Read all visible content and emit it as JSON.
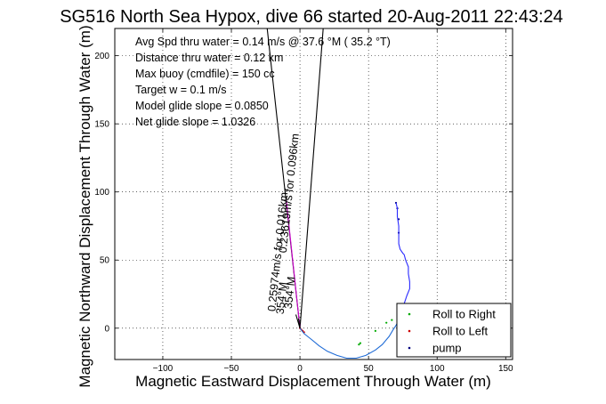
{
  "chart_data": {
    "type": "line",
    "title": "SG516 North Sea Hypox, dive 66 started 20-Aug-2011 22:43:24",
    "xlabel": "Magnetic Eastward Displacement Through Water (m)",
    "ylabel": "Magnetic Northward Displacement Through Water (m)",
    "xlim": [
      -135,
      155
    ],
    "ylim": [
      -23,
      220
    ],
    "xticks": [
      -100,
      -50,
      0,
      50,
      100,
      150
    ],
    "yticks": [
      0,
      50,
      100,
      150,
      200
    ],
    "xtick_labels": [
      "−100",
      "−50",
      "0",
      "50",
      "100",
      "150"
    ],
    "ytick_labels": [
      "0",
      "50",
      "100",
      "150",
      "200"
    ],
    "grid": true,
    "legend_position": "bottom-right",
    "annotations": [
      "Avg Spd thru water =  0.14 m/s @  37.6   °M ( 35.2 °T)",
      "Distance thru water =  0.12 km",
      "Max buoy (cmdfile) = 150 cc",
      "Target w = 0.1 m/s",
      "Model glide slope = 0.0850",
      "Net glide slope = 1.0326"
    ],
    "rotated_labels": [
      "0.23619m/s for 0.096km",
      "0.25974m/s for 0.016km",
      "354°M",
      "354°M"
    ],
    "series": [
      {
        "name": "Roll to Right",
        "color": "#00aa00",
        "marker": "dot",
        "points": [
          [
            43,
            -12
          ],
          [
            44,
            -11
          ],
          [
            55,
            -2
          ],
          [
            63,
            4
          ],
          [
            67,
            6
          ]
        ]
      },
      {
        "name": "Roll to Left",
        "color": "#cc0000",
        "marker": "dot",
        "points": [
          [
            0,
            0
          ],
          [
            1,
            -1
          ],
          [
            2,
            -2
          ],
          [
            3,
            -3
          ]
        ]
      },
      {
        "name": "pump",
        "color": "#000080",
        "marker": "dot",
        "points": [
          [
            70,
            92
          ],
          [
            71,
            88
          ],
          [
            72,
            80
          ],
          [
            72,
            70
          ]
        ]
      },
      {
        "name": "",
        "color": "#1f6bd6",
        "marker": "none",
        "points": [
          [
            0,
            0
          ],
          [
            3,
            -4
          ],
          [
            8,
            -8
          ],
          [
            14,
            -13
          ],
          [
            20,
            -17
          ],
          [
            27,
            -20
          ],
          [
            34,
            -22
          ],
          [
            41,
            -22
          ],
          [
            48,
            -20
          ],
          [
            55,
            -16
          ],
          [
            60,
            -12
          ],
          [
            65,
            -6
          ],
          [
            68,
            -1
          ],
          [
            70,
            2
          ],
          [
            71,
            4
          ]
        ]
      },
      {
        "name": "",
        "color": "#2a2aff",
        "marker": "none",
        "points": [
          [
            71,
            4
          ],
          [
            72,
            8
          ],
          [
            74,
            13
          ],
          [
            76,
            18
          ],
          [
            78,
            24
          ],
          [
            80,
            29
          ],
          [
            80,
            34
          ],
          [
            79,
            40
          ],
          [
            79,
            45
          ],
          [
            77,
            50
          ],
          [
            76,
            54
          ],
          [
            75,
            55
          ],
          [
            73,
            58
          ],
          [
            72,
            62
          ],
          [
            72,
            68
          ],
          [
            72,
            75
          ],
          [
            71,
            82
          ],
          [
            71,
            88
          ],
          [
            70,
            92
          ]
        ]
      },
      {
        "name": "",
        "color": "#000000",
        "marker": "none",
        "points": [
          [
            0,
            0
          ],
          [
            -24,
            221
          ]
        ]
      },
      {
        "name": "",
        "color": "#000000",
        "marker": "none",
        "points": [
          [
            0,
            0
          ],
          [
            17,
            221
          ]
        ]
      },
      {
        "name": "",
        "color": "#cc00cc",
        "marker": "none",
        "points": [
          [
            0,
            0
          ],
          [
            -10,
            94
          ]
        ]
      },
      {
        "name": "",
        "color": "#000000",
        "marker": "none",
        "points": [
          [
            0,
            0
          ],
          [
            -3,
            10
          ]
        ]
      },
      {
        "name": "",
        "color": "#000000",
        "marker": "none",
        "points": [
          [
            0,
            0
          ],
          [
            -1,
            7
          ]
        ]
      }
    ]
  }
}
